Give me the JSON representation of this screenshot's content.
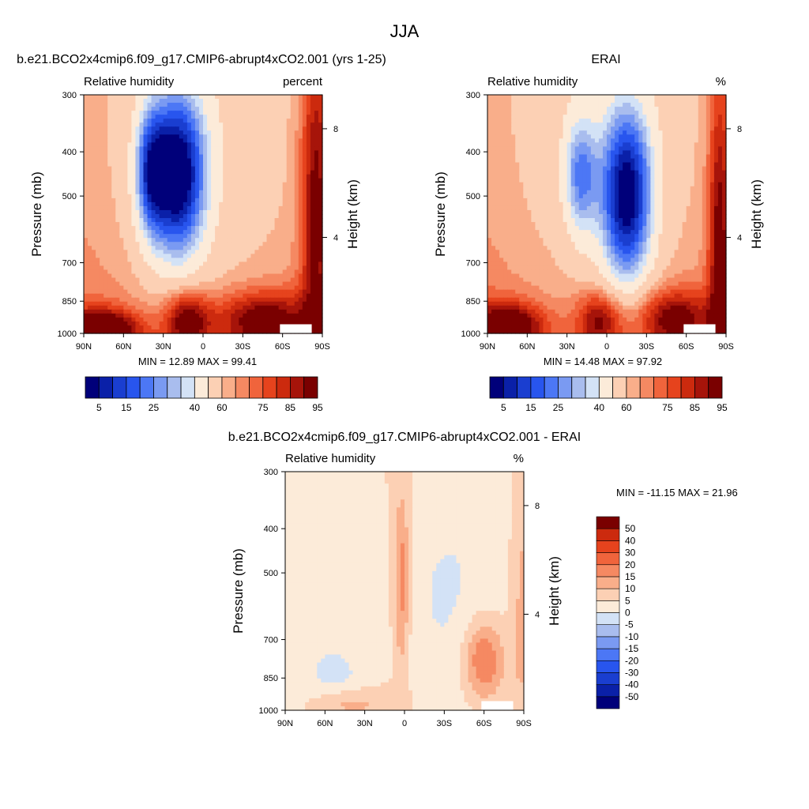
{
  "page_title": "JJA",
  "chart_data": [
    {
      "type": "heatmap",
      "id": "model",
      "title": "b.e21.BCO2x4cmip6.f09_g17.CMIP6-abrupt4xCO2.001 (yrs 1-25)",
      "left_label": "Relative humidity",
      "right_label": "percent",
      "ylabel": "Pressure (mb)",
      "y2label": "Height (km)",
      "x_ticks": [
        "90N",
        "60N",
        "30N",
        "0",
        "30S",
        "60S",
        "90S"
      ],
      "x_values": [
        90,
        60,
        30,
        0,
        -30,
        -60,
        -90
      ],
      "y_ticks": [
        "300",
        "400",
        "500",
        "700",
        "850",
        "1000"
      ],
      "y_values": [
        300,
        400,
        500,
        700,
        850,
        1000
      ],
      "y2_ticks": [
        "8",
        "4"
      ],
      "xlim": [
        90,
        -90
      ],
      "ylim": [
        300,
        1000
      ],
      "yscale": "log",
      "stats": "MIN =  12.89  MAX =  99.41",
      "min": 12.89,
      "max": 99.41,
      "features": [
        {
          "lat": 20,
          "p": 450,
          "amp": -62,
          "lat_w": 16,
          "p_w": 0.3
        },
        {
          "lat": 40,
          "p": 440,
          "amp": -30,
          "lat_w": 8,
          "p_w": 0.22
        },
        {
          "lat": 12,
          "p": 930,
          "amp": 32,
          "lat_w": 12,
          "p_w": 0.1
        },
        {
          "lat": -45,
          "p": 930,
          "amp": 30,
          "lat_w": 25,
          "p_w": 0.1
        },
        {
          "lat": 75,
          "p": 980,
          "amp": 40,
          "lat_w": 18,
          "p_w": 0.07
        },
        {
          "lat": -85,
          "p": 500,
          "amp": 30,
          "lat_w": 8,
          "p_w": 0.6
        }
      ]
    },
    {
      "type": "heatmap",
      "id": "erai",
      "title": "ERAI",
      "left_label": "Relative humidity",
      "right_label": "%",
      "ylabel": "Pressure (mb)",
      "y2label": "Height (km)",
      "x_ticks": [
        "90N",
        "60N",
        "30N",
        "0",
        "30S",
        "60S",
        "90S"
      ],
      "x_values": [
        90,
        60,
        30,
        0,
        -30,
        -60,
        -90
      ],
      "y_ticks": [
        "300",
        "400",
        "500",
        "700",
        "850",
        "1000"
      ],
      "y_values": [
        300,
        400,
        500,
        700,
        850,
        1000
      ],
      "y2_ticks": [
        "8",
        "4"
      ],
      "xlim": [
        90,
        -90
      ],
      "ylim": [
        300,
        1000
      ],
      "yscale": "log",
      "stats": "MIN =  14.48  MAX =  97.92",
      "min": 14.48,
      "max": 97.92,
      "features": [
        {
          "lat": -15,
          "p": 500,
          "amp": -58,
          "lat_w": 14,
          "p_w": 0.32
        },
        {
          "lat": 20,
          "p": 450,
          "amp": -32,
          "lat_w": 9,
          "p_w": 0.22
        },
        {
          "lat": 5,
          "p": 930,
          "amp": 28,
          "lat_w": 12,
          "p_w": 0.1
        },
        {
          "lat": -50,
          "p": 920,
          "amp": 28,
          "lat_w": 20,
          "p_w": 0.1
        },
        {
          "lat": 75,
          "p": 960,
          "amp": 35,
          "lat_w": 18,
          "p_w": 0.08
        },
        {
          "lat": -85,
          "p": 600,
          "amp": 30,
          "lat_w": 6,
          "p_w": 0.6
        }
      ]
    },
    {
      "type": "heatmap",
      "id": "diff",
      "title": "b.e21.BCO2x4cmip6.f09_g17.CMIP6-abrupt4xCO2.001 - ERAI",
      "left_label": "Relative humidity",
      "right_label": "%",
      "ylabel": "Pressure (mb)",
      "y2label": "Height (km)",
      "x_ticks": [
        "90N",
        "60N",
        "30N",
        "0",
        "30S",
        "60S",
        "90S"
      ],
      "x_values": [
        90,
        60,
        30,
        0,
        -30,
        -60,
        -90
      ],
      "y_ticks": [
        "300",
        "400",
        "500",
        "700",
        "850",
        "1000"
      ],
      "y_values": [
        300,
        400,
        500,
        700,
        850,
        1000
      ],
      "y2_ticks": [
        "8",
        "4"
      ],
      "xlim": [
        90,
        -90
      ],
      "ylim": [
        300,
        1000
      ],
      "yscale": "log",
      "stats": "MIN = -11.15  MAX =  21.96",
      "min": -11.15,
      "max": 21.96,
      "features": [
        {
          "lat": 2,
          "p": 520,
          "amp": 14,
          "lat_w": 4,
          "p_w": 0.3
        },
        {
          "lat": -60,
          "p": 780,
          "amp": 18,
          "lat_w": 11,
          "p_w": 0.15
        },
        {
          "lat": -20,
          "p": 560,
          "amp": -5,
          "lat_w": 22,
          "p_w": 0.4
        },
        {
          "lat": 45,
          "p": 970,
          "amp": 10,
          "lat_w": 20,
          "p_w": 0.06
        },
        {
          "lat": 50,
          "p": 860,
          "amp": -4,
          "lat_w": 16,
          "p_w": 0.12
        },
        {
          "lat": -88,
          "p": 600,
          "amp": 7,
          "lat_w": 6,
          "p_w": 0.6
        }
      ]
    }
  ],
  "colorbars": [
    {
      "id": "model-colorbar",
      "orientation": "horizontal",
      "levels": [
        5,
        10,
        15,
        20,
        25,
        30,
        35,
        40,
        50,
        60,
        65,
        70,
        75,
        80,
        85,
        90,
        95
      ],
      "labels": [
        "5",
        "15",
        "25",
        "40",
        "60",
        "75",
        "85",
        "95"
      ],
      "colors": [
        "#00007a",
        "#0a20a8",
        "#1a3ed0",
        "#2855ee",
        "#4c77f5",
        "#7a9af2",
        "#a9bdee",
        "#d3e2f6",
        "#fcebd9",
        "#fcd0b4",
        "#f9ae8a",
        "#f58962",
        "#f0643c",
        "#e6431d",
        "#cc2a0e",
        "#a6140a",
        "#7a0000"
      ]
    },
    {
      "id": "erai-colorbar",
      "orientation": "horizontal",
      "levels": [
        5,
        10,
        15,
        20,
        25,
        30,
        35,
        40,
        50,
        60,
        65,
        70,
        75,
        80,
        85,
        90,
        95
      ],
      "labels": [
        "5",
        "15",
        "25",
        "40",
        "60",
        "75",
        "85",
        "95"
      ],
      "colors": [
        "#00007a",
        "#0a20a8",
        "#1a3ed0",
        "#2855ee",
        "#4c77f5",
        "#7a9af2",
        "#a9bdee",
        "#d3e2f6",
        "#fcebd9",
        "#fcd0b4",
        "#f9ae8a",
        "#f58962",
        "#f0643c",
        "#e6431d",
        "#cc2a0e",
        "#a6140a",
        "#7a0000"
      ]
    },
    {
      "id": "diff-colorbar",
      "orientation": "vertical",
      "levels": [
        -50,
        -40,
        -30,
        -20,
        -15,
        -10,
        -5,
        0,
        5,
        10,
        15,
        20,
        30,
        40,
        50
      ],
      "labels": [
        "-50",
        "-40",
        "-30",
        "-20",
        "-15",
        "-10",
        "-5",
        "0",
        "5",
        "10",
        "15",
        "20",
        "30",
        "40",
        "50"
      ],
      "colors": [
        "#00007a",
        "#0a20a8",
        "#1a3ed0",
        "#2855ee",
        "#4c77f5",
        "#7a9af2",
        "#a9bdee",
        "#d3e2f6",
        "#fcebd9",
        "#fcd0b4",
        "#f9ae8a",
        "#f58962",
        "#f0643c",
        "#e6431d",
        "#cc2a0e",
        "#7a0000"
      ]
    }
  ]
}
